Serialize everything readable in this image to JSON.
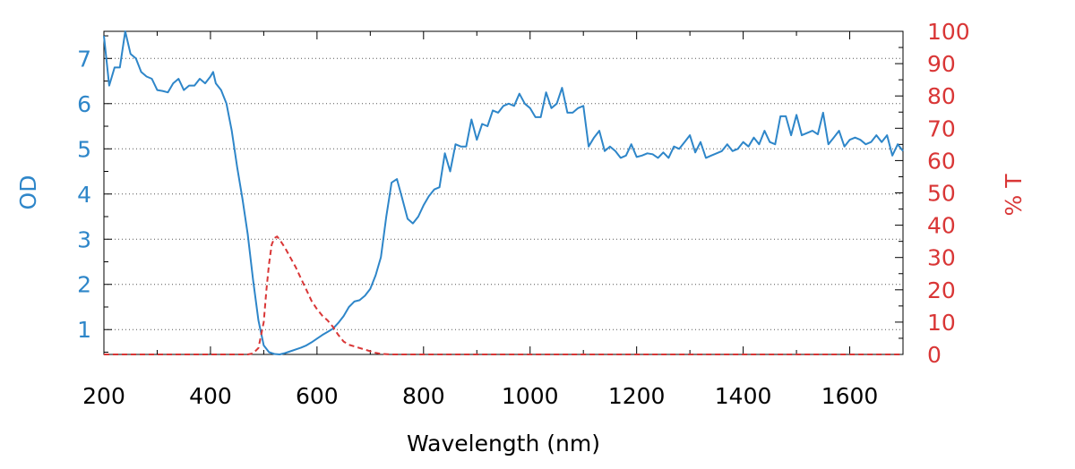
{
  "chart_data": {
    "type": "line",
    "xlabel": "Wavelength (nm)",
    "ylabel": "OD",
    "y2label": "% T",
    "xlim": [
      200,
      1700
    ],
    "ylim": [
      0.45,
      7.6
    ],
    "y2lim": [
      0,
      100
    ],
    "x_ticks": [
      200,
      400,
      600,
      800,
      1000,
      1200,
      1400,
      1600
    ],
    "y_ticks": [
      1,
      2,
      3,
      4,
      5,
      6,
      7
    ],
    "y2_ticks": [
      0,
      10,
      20,
      30,
      40,
      50,
      60,
      70,
      80,
      90,
      100
    ],
    "grid": "horizontal dotted",
    "colors": {
      "od": "#2e86c9",
      "transmission": "#d93636",
      "axis": "#000000",
      "grid": "#555555"
    },
    "series": [
      {
        "axis": "left",
        "style": "solid",
        "x": [
          200,
          210,
          220,
          230,
          235,
          240,
          250,
          260,
          270,
          280,
          290,
          300,
          310,
          320,
          330,
          340,
          350,
          360,
          370,
          380,
          390,
          400,
          405,
          410,
          420,
          430,
          440,
          450,
          460,
          470,
          480,
          490,
          500,
          510,
          520,
          530,
          540,
          550,
          560,
          570,
          580,
          590,
          600,
          610,
          620,
          630,
          640,
          650,
          660,
          670,
          680,
          690,
          700,
          710,
          720,
          730,
          740,
          750,
          760,
          770,
          780,
          790,
          800,
          810,
          820,
          830,
          840,
          850,
          860,
          870,
          880,
          890,
          900,
          910,
          920,
          930,
          940,
          950,
          960,
          970,
          980,
          990,
          1000,
          1010,
          1020,
          1030,
          1040,
          1050,
          1060,
          1070,
          1080,
          1090,
          1100,
          1110,
          1120,
          1130,
          1140,
          1150,
          1160,
          1170,
          1180,
          1190,
          1200,
          1210,
          1220,
          1230,
          1240,
          1250,
          1260,
          1270,
          1280,
          1290,
          1300,
          1310,
          1320,
          1330,
          1340,
          1350,
          1360,
          1370,
          1380,
          1390,
          1400,
          1410,
          1420,
          1430,
          1440,
          1450,
          1460,
          1470,
          1480,
          1490,
          1500,
          1510,
          1520,
          1530,
          1540,
          1550,
          1560,
          1570,
          1580,
          1590,
          1600,
          1610,
          1620,
          1630,
          1640,
          1650,
          1660,
          1670,
          1680,
          1690,
          1700
        ],
        "values": [
          7.5,
          6.4,
          6.8,
          6.8,
          7.2,
          7.6,
          7.1,
          7.0,
          6.7,
          6.6,
          6.55,
          6.3,
          6.28,
          6.25,
          6.45,
          6.55,
          6.3,
          6.4,
          6.4,
          6.55,
          6.45,
          6.6,
          6.7,
          6.45,
          6.3,
          6.0,
          5.4,
          4.6,
          3.9,
          3.1,
          2.1,
          1.2,
          0.65,
          0.5,
          0.46,
          0.45,
          0.48,
          0.52,
          0.56,
          0.6,
          0.65,
          0.72,
          0.8,
          0.88,
          0.95,
          1.02,
          1.15,
          1.3,
          1.5,
          1.62,
          1.65,
          1.75,
          1.9,
          2.2,
          2.6,
          3.5,
          4.25,
          4.33,
          3.9,
          3.45,
          3.35,
          3.5,
          3.75,
          3.95,
          4.1,
          4.15,
          4.9,
          4.5,
          5.1,
          5.05,
          5.05,
          5.65,
          5.2,
          5.55,
          5.5,
          5.85,
          5.8,
          5.95,
          6.0,
          5.95,
          6.22,
          6.0,
          5.9,
          5.7,
          5.7,
          6.25,
          5.9,
          6.0,
          6.35,
          5.8,
          5.8,
          5.9,
          5.95,
          5.05,
          5.25,
          5.4,
          4.95,
          5.05,
          4.95,
          4.8,
          4.85,
          5.1,
          4.82,
          4.85,
          4.9,
          4.88,
          4.8,
          4.92,
          4.8,
          5.05,
          5.0,
          5.15,
          5.3,
          4.92,
          5.15,
          4.8,
          4.85,
          4.9,
          4.95,
          5.1,
          4.95,
          5.0,
          5.15,
          5.05,
          5.25,
          5.1,
          5.4,
          5.15,
          5.1,
          5.72,
          5.72,
          5.3,
          5.75,
          5.3,
          5.35,
          5.4,
          5.32,
          5.8,
          5.1,
          5.25,
          5.4,
          5.05,
          5.2,
          5.25,
          5.2,
          5.1,
          5.15,
          5.3,
          5.15,
          5.3,
          4.85,
          5.1,
          4.95
        ]
      },
      {
        "axis": "right",
        "style": "dashed",
        "x": [
          200,
          300,
          400,
          450,
          470,
          480,
          490,
          500,
          505,
          510,
          515,
          520,
          525,
          530,
          540,
          550,
          560,
          570,
          580,
          590,
          600,
          610,
          620,
          630,
          640,
          650,
          660,
          670,
          680,
          690,
          700,
          710,
          720,
          740,
          800,
          1000,
          1200,
          1400,
          1600,
          1700
        ],
        "values": [
          0,
          0,
          0,
          0,
          0,
          0.3,
          2,
          10,
          20,
          28,
          34,
          36,
          36.5,
          35.5,
          33,
          30,
          27,
          23.5,
          20,
          16.5,
          14,
          12,
          10.5,
          8.5,
          6,
          4,
          3,
          2.5,
          2,
          1.5,
          1,
          0.5,
          0.2,
          0,
          0,
          0,
          0,
          0,
          0,
          0
        ]
      }
    ]
  }
}
